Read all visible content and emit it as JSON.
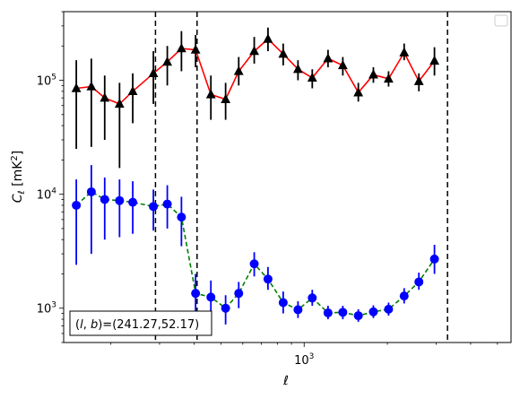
{
  "chart_data": {
    "type": "scatter",
    "title": "",
    "xlabel": "ℓ",
    "ylabel": "C_ℓ [mK²]",
    "xscale": "log",
    "yscale": "log",
    "xlim": [
      135,
      5600
    ],
    "ylim": [
      500,
      400000
    ],
    "grid": false,
    "legend": "upper right, empty",
    "x_tick_labels": [
      {
        "value": 1000,
        "label": "10",
        "exp": "3"
      }
    ],
    "y_tick_labels": [
      {
        "value": 1000,
        "label": "10",
        "exp": "3"
      },
      {
        "value": 10000,
        "label": "10",
        "exp": "4"
      },
      {
        "value": 100000,
        "label": "10",
        "exp": "5"
      }
    ],
    "annotation": "(l, b)=(241.27,52.17)",
    "annotation_parts": {
      "prefix": "(",
      "l": "l",
      "sep": ", ",
      "b": "b",
      "suffix": ")=(241.27,52.17)"
    },
    "vlines": [
      290,
      410,
      3300
    ],
    "series": [
      {
        "color": "#ff0000",
        "marker": "triangle",
        "marker_color": "#000000",
        "errcolor": "#000000",
        "linestyle": "solid",
        "points": [
          {
            "x": 150,
            "y": 85000,
            "lo": 25000,
            "hi": 150000
          },
          {
            "x": 170,
            "y": 88000,
            "lo": 26000,
            "hi": 155000
          },
          {
            "x": 190,
            "y": 70000,
            "lo": 30000,
            "hi": 110000
          },
          {
            "x": 215,
            "y": 62000,
            "lo": 17000,
            "hi": 95000
          },
          {
            "x": 240,
            "y": 80000,
            "lo": 42000,
            "hi": 115000
          },
          {
            "x": 285,
            "y": 115000,
            "lo": 62000,
            "hi": 180000
          },
          {
            "x": 320,
            "y": 145000,
            "lo": 90000,
            "hi": 200000
          },
          {
            "x": 360,
            "y": 190000,
            "lo": 120000,
            "hi": 270000
          },
          {
            "x": 405,
            "y": 185000,
            "lo": 130000,
            "hi": 250000
          },
          {
            "x": 460,
            "y": 75000,
            "lo": 45000,
            "hi": 110000
          },
          {
            "x": 520,
            "y": 68000,
            "lo": 45000,
            "hi": 95000
          },
          {
            "x": 580,
            "y": 120000,
            "lo": 90000,
            "hi": 160000
          },
          {
            "x": 660,
            "y": 180000,
            "lo": 140000,
            "hi": 240000
          },
          {
            "x": 740,
            "y": 230000,
            "lo": 180000,
            "hi": 290000
          },
          {
            "x": 840,
            "y": 170000,
            "lo": 135000,
            "hi": 210000
          },
          {
            "x": 950,
            "y": 125000,
            "lo": 100000,
            "hi": 150000
          },
          {
            "x": 1070,
            "y": 105000,
            "lo": 85000,
            "hi": 125000
          },
          {
            "x": 1220,
            "y": 155000,
            "lo": 130000,
            "hi": 185000
          },
          {
            "x": 1380,
            "y": 135000,
            "lo": 110000,
            "hi": 160000
          },
          {
            "x": 1570,
            "y": 78000,
            "lo": 65000,
            "hi": 95000
          },
          {
            "x": 1780,
            "y": 112000,
            "lo": 95000,
            "hi": 130000
          },
          {
            "x": 2020,
            "y": 103000,
            "lo": 88000,
            "hi": 120000
          },
          {
            "x": 2300,
            "y": 175000,
            "lo": 150000,
            "hi": 210000
          },
          {
            "x": 2600,
            "y": 98000,
            "lo": 80000,
            "hi": 115000
          },
          {
            "x": 2960,
            "y": 148000,
            "lo": 110000,
            "hi": 195000
          }
        ]
      },
      {
        "color": "#008000",
        "marker": "circle",
        "marker_color": "#0000ff",
        "errcolor": "#0000ff",
        "linestyle": "dashed",
        "points": [
          {
            "x": 150,
            "y": 8000,
            "lo": 2400,
            "hi": 13500
          },
          {
            "x": 170,
            "y": 10500,
            "lo": 3000,
            "hi": 18000
          },
          {
            "x": 190,
            "y": 9000,
            "lo": 4000,
            "hi": 14000
          },
          {
            "x": 215,
            "y": 8800,
            "lo": 4200,
            "hi": 13500
          },
          {
            "x": 240,
            "y": 8500,
            "lo": 4500,
            "hi": 13000
          },
          {
            "x": 285,
            "y": 7800,
            "lo": 4800,
            "hi": 11000
          },
          {
            "x": 320,
            "y": 8200,
            "lo": 5000,
            "hi": 12000
          },
          {
            "x": 360,
            "y": 6300,
            "lo": 3500,
            "hi": 9500
          },
          {
            "x": 405,
            "y": 1350,
            "lo": 750,
            "hi": 2000
          },
          {
            "x": 460,
            "y": 1250,
            "lo": 750,
            "hi": 1750
          },
          {
            "x": 520,
            "y": 1000,
            "lo": 720,
            "hi": 1300
          },
          {
            "x": 580,
            "y": 1350,
            "lo": 1000,
            "hi": 1700
          },
          {
            "x": 660,
            "y": 2450,
            "lo": 1900,
            "hi": 3100
          },
          {
            "x": 740,
            "y": 1800,
            "lo": 1450,
            "hi": 2300
          },
          {
            "x": 840,
            "y": 1120,
            "lo": 900,
            "hi": 1400
          },
          {
            "x": 950,
            "y": 970,
            "lo": 820,
            "hi": 1150
          },
          {
            "x": 1070,
            "y": 1230,
            "lo": 1050,
            "hi": 1450
          },
          {
            "x": 1220,
            "y": 910,
            "lo": 800,
            "hi": 1050
          },
          {
            "x": 1380,
            "y": 920,
            "lo": 800,
            "hi": 1050
          },
          {
            "x": 1570,
            "y": 860,
            "lo": 760,
            "hi": 980
          },
          {
            "x": 1780,
            "y": 930,
            "lo": 820,
            "hi": 1060
          },
          {
            "x": 2020,
            "y": 980,
            "lo": 860,
            "hi": 1120
          },
          {
            "x": 2300,
            "y": 1280,
            "lo": 1100,
            "hi": 1500
          },
          {
            "x": 2600,
            "y": 1700,
            "lo": 1450,
            "hi": 2050
          },
          {
            "x": 2960,
            "y": 2700,
            "lo": 2000,
            "hi": 3600
          }
        ]
      }
    ]
  }
}
